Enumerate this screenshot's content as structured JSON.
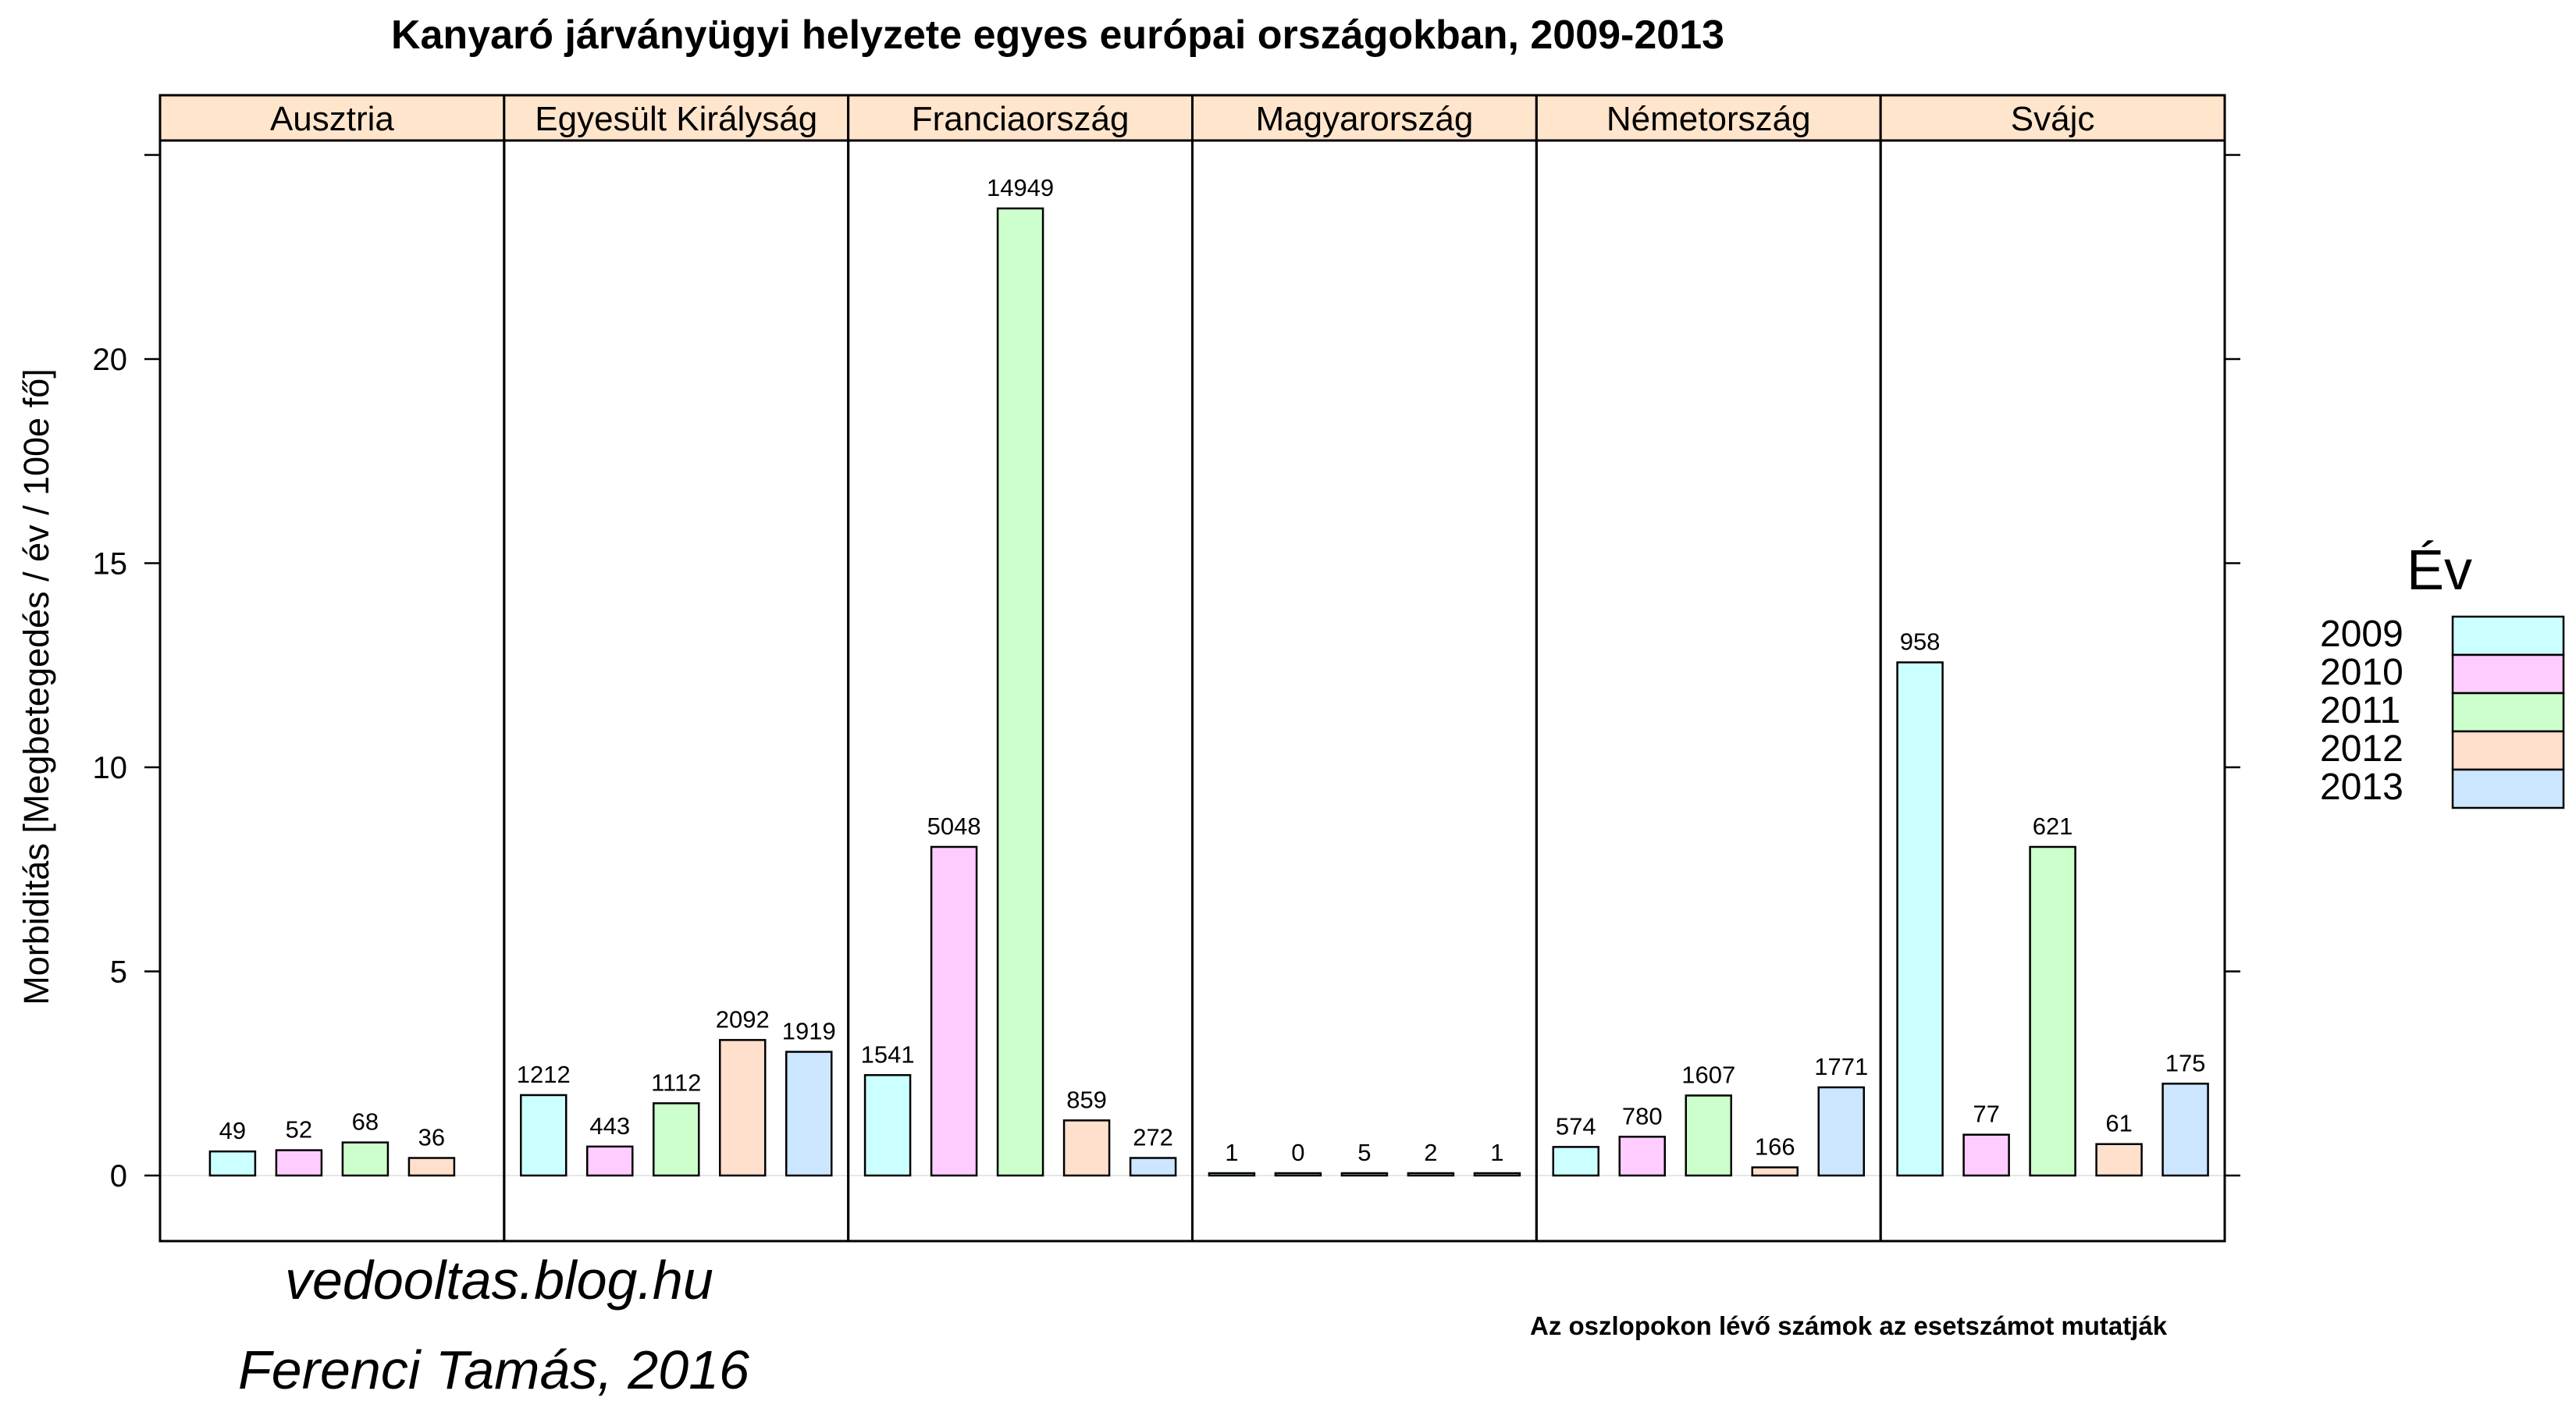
{
  "chart_data": {
    "type": "bar",
    "title": "Kanyaró járványügyi helyzete egyes európai országokban, 2009-2013",
    "ylabel": "Morbiditás [Megbetegedés / év / 100e fő]",
    "ylim": [
      -1.6,
      25.0
    ],
    "yticks": [
      0,
      5,
      10,
      15,
      20
    ],
    "legend": {
      "title": "Év",
      "position": "right"
    },
    "series_names": [
      "2009",
      "2010",
      "2011",
      "2012",
      "2013"
    ],
    "colors": [
      "#ccffff",
      "#ffccff",
      "#ccffcc",
      "#ffe0cc",
      "#cce6ff"
    ],
    "panels": [
      {
        "name": "Ausztria",
        "values": [
          0.59,
          0.62,
          0.81,
          0.43
        ],
        "counts": [
          "49",
          "52",
          "68",
          "36"
        ]
      },
      {
        "name": "Egyesült Királyság",
        "values": [
          1.97,
          0.71,
          1.77,
          3.32,
          3.03
        ],
        "counts": [
          "1212",
          "443",
          "1112",
          "2092",
          "1919"
        ]
      },
      {
        "name": "Franciaország",
        "values": [
          2.46,
          8.05,
          23.69,
          1.35,
          0.43
        ],
        "counts": [
          "1541",
          "5048",
          "14949",
          "859",
          "272"
        ]
      },
      {
        "name": "Magyarország",
        "values": [
          0.01,
          0.0,
          0.05,
          0.02,
          0.01
        ],
        "counts": [
          "1",
          "0",
          "5",
          "2",
          "1"
        ]
      },
      {
        "name": "Németország",
        "values": [
          0.7,
          0.95,
          1.96,
          0.2,
          2.16
        ],
        "counts": [
          "574",
          "780",
          "1607",
          "166",
          "1771"
        ]
      },
      {
        "name": "Svájc",
        "values": [
          12.57,
          1.0,
          8.05,
          0.77,
          2.25
        ],
        "counts": [
          "958",
          "77",
          "621",
          "61",
          "175"
        ]
      }
    ]
  },
  "credits": {
    "blog": "vedooltas.blog.hu",
    "author": "Ferenci Tamás, 2016"
  },
  "footnote": "Az oszlopokon lévő számok az esetszámot mutatják"
}
